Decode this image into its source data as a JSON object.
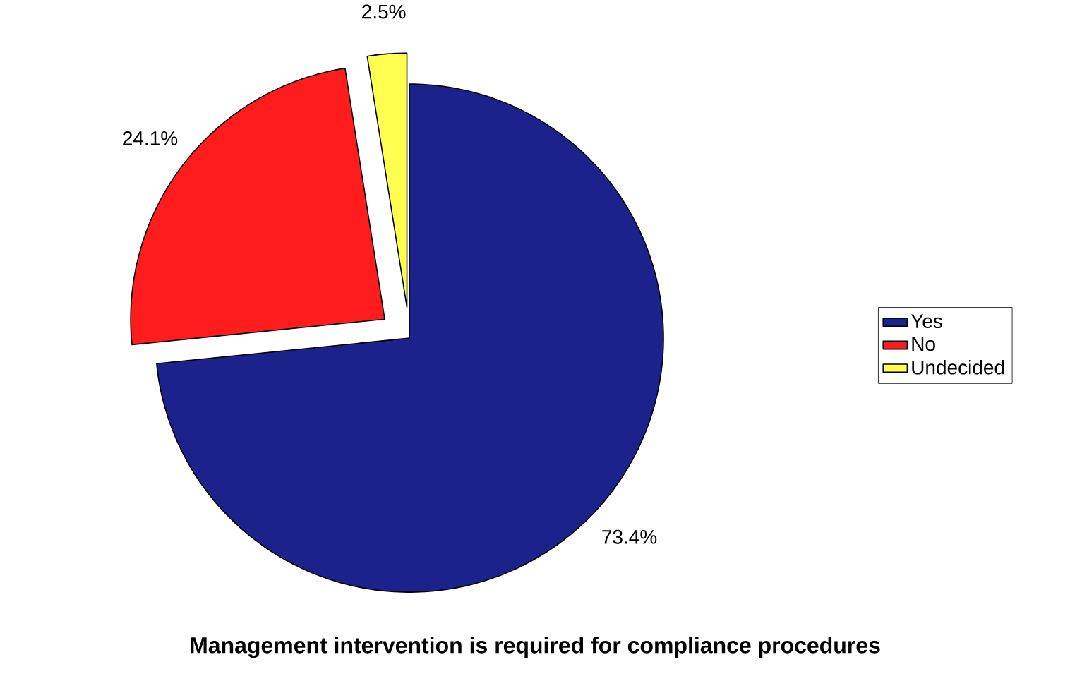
{
  "chart_data": {
    "type": "pie",
    "title": "Management intervention is required for compliance procedures",
    "categories": [
      "Yes",
      "No",
      "Undecided"
    ],
    "values": [
      73.4,
      24.1,
      2.5
    ],
    "colors": [
      "#1c228c",
      "#ff1c1c",
      "#ffff50"
    ],
    "value_labels": [
      "73.4%",
      "24.1%",
      "2.5%"
    ],
    "legend": "right"
  }
}
